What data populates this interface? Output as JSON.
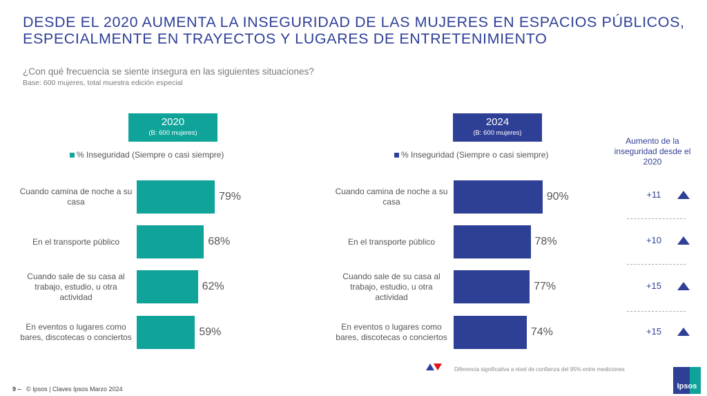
{
  "title": "DESDE EL 2020 AUMENTA LA INSEGURIDAD DE LAS MUJERES EN ESPACIOS PÚBLICOS, ESPECIALMENTE EN TRAYECTOS Y LUGARES DE ENTRETENIMIENTO",
  "question": "¿Con qué frecuencia se siente insegura en las siguientes situaciones?",
  "base": "Base: 600 mujeres, total muestra edición especial",
  "increase_header": "Aumento de la inseguridad desde el 2020",
  "note": "Diferencia significativa a nivel de confianza del 95% entre mediciones",
  "footer": {
    "page": "9 –",
    "text": "© Ipsos | Claves Ipsos Marzo 2024"
  },
  "logo": "Ipsos",
  "chart_data": [
    {
      "type": "bar",
      "orientation": "horizontal",
      "title": "2020",
      "subtitle": "(B: 600 mujeres)",
      "legend": "% Inseguridad (Siempre o casi siempre)",
      "color": "#0fa39a",
      "categories": [
        "Cuando camina de noche a su casa",
        "En el transporte público",
        "Cuando sale de su casa al trabajo, estudio, u otra actividad",
        "En eventos o lugares como bares, discotecas o conciertos"
      ],
      "values": [
        79,
        68,
        62,
        59
      ],
      "labels": [
        "79%",
        "68%",
        "62%",
        "59%"
      ]
    },
    {
      "type": "bar",
      "orientation": "horizontal",
      "title": "2024",
      "subtitle": "(B: 600 mujeres)",
      "legend": "% Inseguridad (Siempre o casi siempre)",
      "color": "#2e3f96",
      "categories": [
        "Cuando camina de noche a su casa",
        "En el transporte público",
        "Cuando sale de su casa al trabajo, estudio, u otra actividad",
        "En eventos o lugares como bares, discotecas o conciertos"
      ],
      "values": [
        90,
        78,
        77,
        74
      ],
      "labels": [
        "90%",
        "78%",
        "77%",
        "74%"
      ],
      "differences": [
        "+11",
        "+10",
        "+15",
        "+15"
      ],
      "significance": [
        "up",
        "up",
        "up",
        "up"
      ]
    }
  ]
}
